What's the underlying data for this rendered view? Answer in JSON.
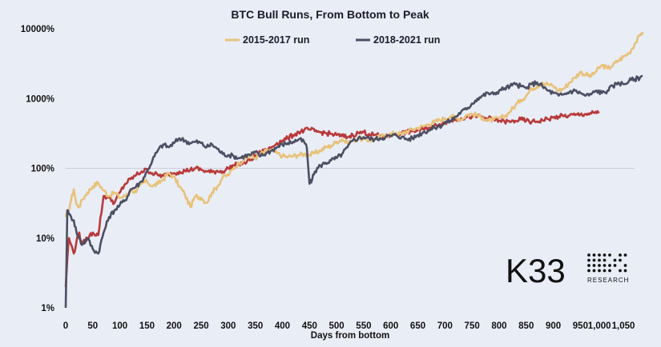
{
  "chart_data": {
    "type": "line",
    "title": "BTC Bull Runs, From Bottom to Peak",
    "xlabel": "Days from bottom",
    "ylabel": "",
    "yscale": "log",
    "xlim": [
      0,
      1050
    ],
    "ylim": [
      1,
      10000
    ],
    "x_ticks": [
      0,
      50,
      100,
      150,
      200,
      250,
      300,
      350,
      400,
      450,
      500,
      550,
      600,
      650,
      700,
      750,
      800,
      850,
      900,
      950,
      1000,
      1050
    ],
    "x_tick_labels": [
      "0",
      "50",
      "100",
      "150",
      "200",
      "250",
      "300",
      "350",
      "400",
      "450",
      "500",
      "550",
      "600",
      "650",
      "700",
      "750",
      "800",
      "850",
      "900",
      "950",
      "1,000",
      "1,050"
    ],
    "y_ticks": [
      1,
      10,
      100,
      1000,
      10000
    ],
    "y_tick_labels": [
      "1%",
      "10%",
      "100%",
      "1000%",
      "10000%"
    ],
    "grid": "horizontal at 100%",
    "legend": "top-center",
    "series": [
      {
        "name": "2015-2017 run",
        "color": "#e8c27a",
        "x": [
          0,
          5,
          10,
          15,
          20,
          25,
          30,
          40,
          50,
          60,
          70,
          80,
          90,
          100,
          110,
          120,
          130,
          140,
          150,
          160,
          170,
          180,
          190,
          200,
          210,
          220,
          230,
          240,
          250,
          260,
          270,
          280,
          290,
          300,
          310,
          320,
          330,
          340,
          350,
          360,
          370,
          380,
          390,
          400,
          410,
          420,
          430,
          440,
          450,
          460,
          470,
          480,
          490,
          500,
          510,
          520,
          530,
          540,
          550,
          560,
          570,
          580,
          590,
          600,
          610,
          620,
          630,
          640,
          650,
          660,
          670,
          680,
          690,
          700,
          710,
          720,
          730,
          740,
          750,
          760,
          770,
          780,
          790,
          800,
          810,
          820,
          830,
          840,
          850,
          860,
          870,
          880,
          890,
          900,
          910,
          920,
          930,
          940,
          950,
          960,
          970,
          980,
          990,
          1000,
          1010,
          1020,
          1030,
          1040,
          1050,
          1060,
          1065
        ],
        "y": [
          20,
          25,
          35,
          50,
          30,
          28,
          35,
          45,
          55,
          62,
          48,
          40,
          45,
          38,
          40,
          50,
          45,
          60,
          65,
          55,
          60,
          70,
          85,
          75,
          55,
          42,
          28,
          40,
          38,
          32,
          45,
          55,
          75,
          80,
          100,
          120,
          135,
          150,
          140,
          160,
          175,
          180,
          165,
          150,
          145,
          150,
          155,
          160,
          155,
          165,
          180,
          200,
          210,
          240,
          260,
          230,
          250,
          270,
          260,
          250,
          270,
          280,
          300,
          310,
          320,
          310,
          340,
          360,
          380,
          400,
          430,
          460,
          490,
          520,
          550,
          540,
          500,
          580,
          600,
          570,
          530,
          480,
          500,
          520,
          550,
          650,
          800,
          950,
          1100,
          1400,
          1500,
          1700,
          1600,
          1500,
          1300,
          1400,
          1700,
          2000,
          2400,
          2200,
          2100,
          2500,
          3000,
          2700,
          3000,
          3500,
          4000,
          4500,
          6000,
          8000,
          9000
        ]
      },
      {
        "name": "2018-2021 run",
        "color": "#4c4f63",
        "x": [
          0,
          3,
          6,
          10,
          15,
          20,
          25,
          30,
          40,
          50,
          60,
          70,
          80,
          90,
          100,
          110,
          120,
          130,
          140,
          150,
          160,
          170,
          180,
          190,
          200,
          210,
          220,
          230,
          240,
          250,
          260,
          270,
          280,
          290,
          300,
          310,
          320,
          330,
          340,
          350,
          360,
          370,
          380,
          390,
          400,
          410,
          420,
          430,
          440,
          445,
          450,
          455,
          460,
          470,
          480,
          490,
          500,
          510,
          520,
          530,
          540,
          550,
          560,
          570,
          580,
          590,
          600,
          610,
          620,
          630,
          640,
          650,
          660,
          670,
          680,
          690,
          700,
          710,
          720,
          730,
          740,
          750,
          760,
          770,
          780,
          790,
          800,
          810,
          820,
          830,
          840,
          850,
          860,
          870,
          880,
          890,
          900,
          910,
          920,
          930,
          940,
          950,
          960,
          970,
          980,
          990,
          1000,
          1010,
          1020,
          1030,
          1040,
          1050,
          1060,
          1065
        ],
        "y": [
          1,
          25,
          22,
          20,
          18,
          12,
          10,
          8,
          10,
          7,
          6,
          12,
          20,
          25,
          30,
          35,
          50,
          55,
          65,
          90,
          130,
          180,
          220,
          200,
          230,
          270,
          250,
          230,
          240,
          230,
          200,
          220,
          190,
          160,
          155,
          150,
          140,
          150,
          155,
          170,
          150,
          165,
          180,
          200,
          220,
          230,
          240,
          260,
          240,
          200,
          60,
          70,
          90,
          110,
          120,
          130,
          140,
          160,
          200,
          250,
          270,
          280,
          270,
          260,
          270,
          280,
          290,
          300,
          280,
          260,
          270,
          300,
          330,
          350,
          380,
          400,
          450,
          480,
          550,
          650,
          700,
          850,
          1000,
          1100,
          1200,
          1150,
          1300,
          1400,
          1500,
          1600,
          1500,
          1400,
          1600,
          1700,
          1500,
          1300,
          1200,
          1100,
          1150,
          1250,
          1300,
          1200,
          1100,
          1150,
          1300,
          1200,
          1300,
          1500,
          1700,
          1600,
          1800,
          1900,
          2000,
          2100
        ]
      },
      {
        "color": "#b83a3a",
        "x": [
          0,
          3,
          6,
          10,
          15,
          20,
          25,
          30,
          40,
          50,
          60,
          70,
          80,
          90,
          100,
          110,
          120,
          130,
          140,
          150,
          160,
          170,
          180,
          190,
          200,
          210,
          220,
          230,
          240,
          250,
          260,
          270,
          280,
          290,
          300,
          310,
          320,
          330,
          340,
          350,
          360,
          370,
          380,
          390,
          400,
          410,
          420,
          430,
          440,
          450,
          460,
          470,
          480,
          490,
          500,
          510,
          520,
          530,
          540,
          550,
          560,
          570,
          580,
          590,
          600,
          610,
          620,
          630,
          640,
          650,
          660,
          670,
          680,
          690,
          700,
          710,
          720,
          730,
          740,
          750,
          760,
          770,
          780,
          790,
          800,
          810,
          820,
          830,
          840,
          850,
          860,
          870,
          880,
          890,
          900,
          910,
          920,
          930,
          940,
          950,
          960,
          970,
          980,
          985
        ],
        "y": [
          2,
          5,
          10,
          8,
          6,
          9,
          12,
          8,
          10,
          12,
          11,
          40,
          38,
          32,
          45,
          60,
          70,
          80,
          90,
          95,
          85,
          80,
          78,
          82,
          85,
          90,
          92,
          95,
          100,
          95,
          90,
          88,
          92,
          90,
          100,
          110,
          115,
          120,
          130,
          150,
          170,
          180,
          200,
          230,
          250,
          270,
          300,
          330,
          350,
          360,
          340,
          330,
          320,
          310,
          300,
          290,
          280,
          300,
          320,
          330,
          310,
          300,
          290,
          280,
          300,
          310,
          320,
          330,
          340,
          350,
          360,
          380,
          400,
          430,
          460,
          480,
          500,
          520,
          540,
          550,
          560,
          540,
          520,
          500,
          480,
          470,
          460,
          480,
          500,
          480,
          460,
          470,
          490,
          510,
          530,
          550,
          560,
          570,
          580,
          590,
          600,
          610,
          620,
          640
        ]
      }
    ]
  },
  "logo": {
    "text": "K33",
    "subtext": "RESEARCH"
  }
}
